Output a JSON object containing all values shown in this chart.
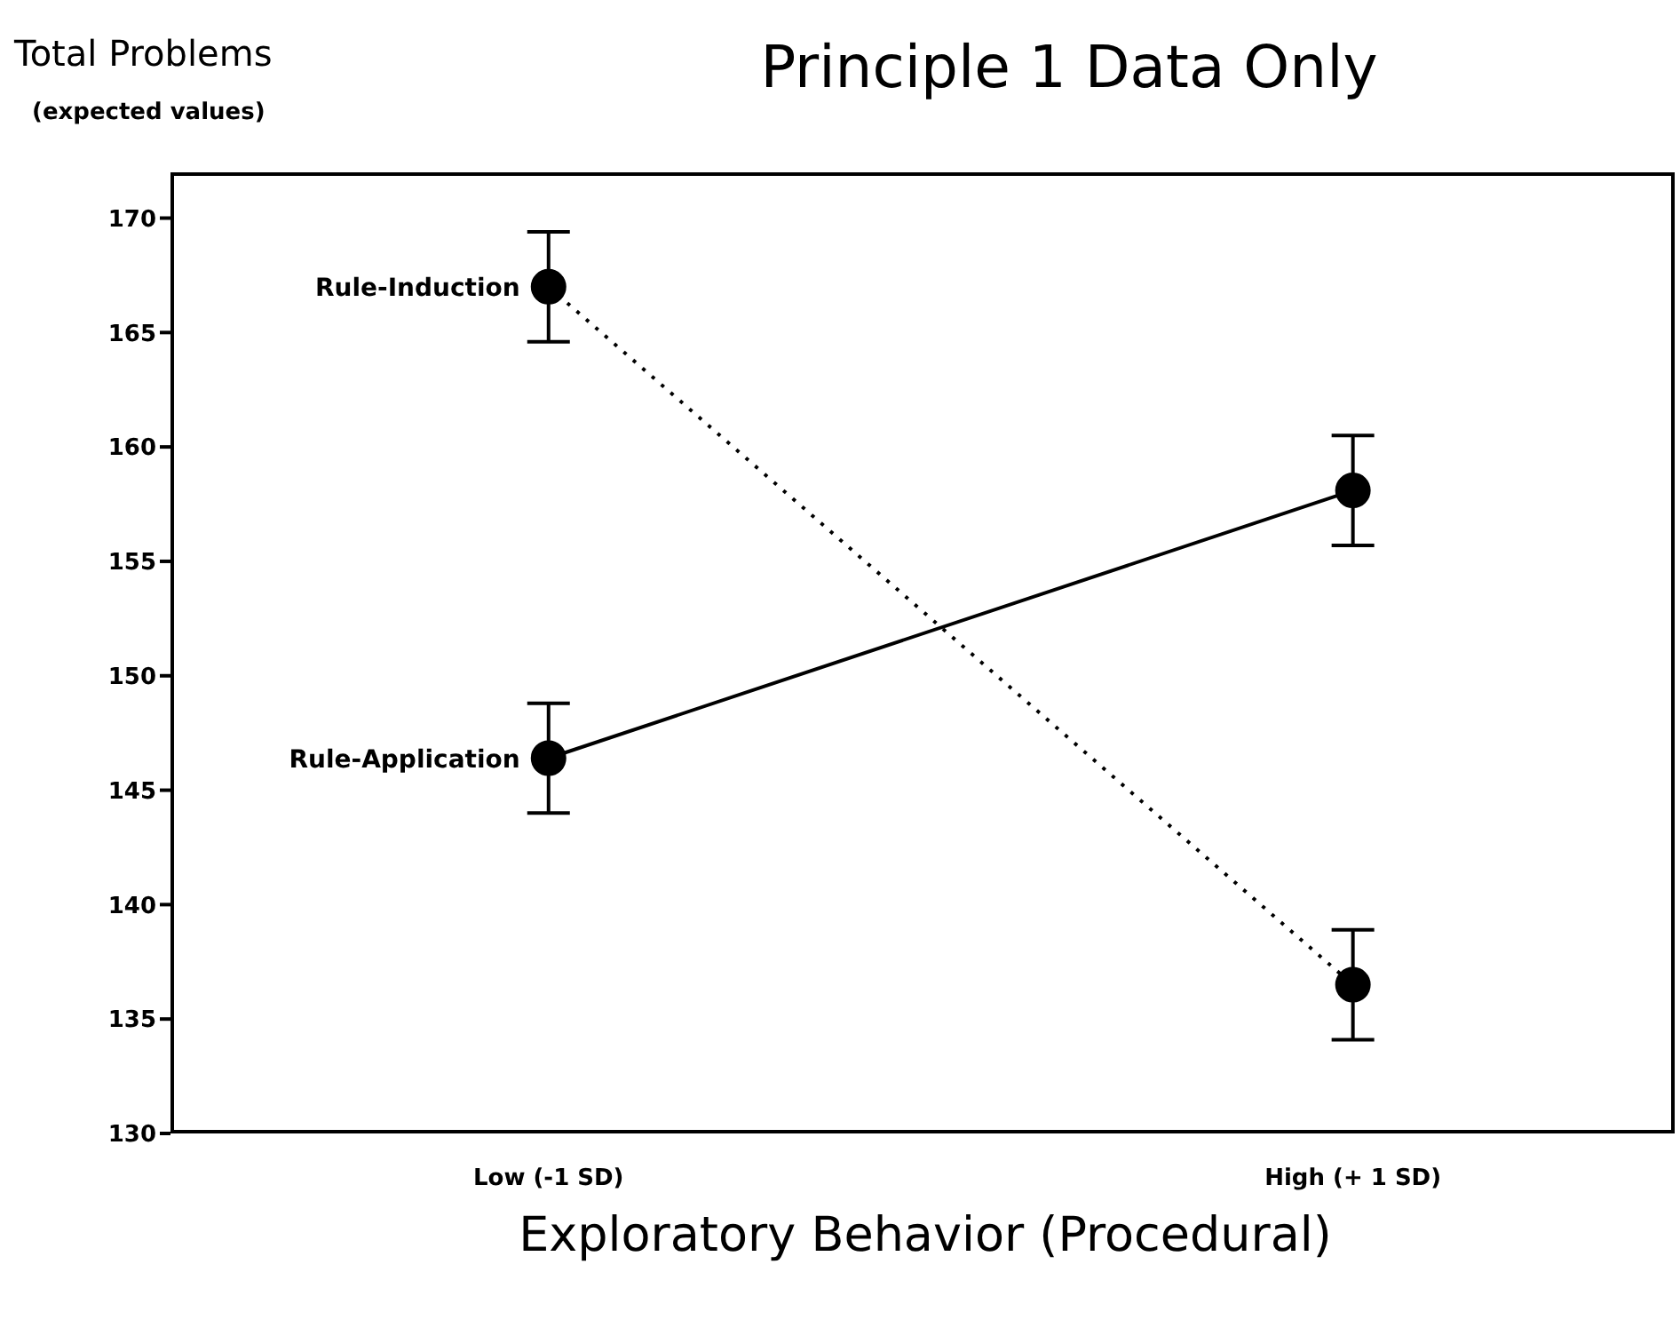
{
  "chart_data": {
    "type": "line",
    "title": "Principle 1 Data Only",
    "ylabel": "Total Problems",
    "xlabel": "Exploratory Behavior (Procedural)",
    "annotations": [
      "(expected values)"
    ],
    "categories": [
      "Low (-1 SD)",
      "High (+ 1 SD)"
    ],
    "series": [
      {
        "name": "Rule-Induction",
        "color": "#000000",
        "values": [
          167.0,
          136.5
        ],
        "errors": [
          2.4,
          2.4
        ],
        "line_style": "dotted",
        "marker": "circle"
      },
      {
        "name": "Rule-Application",
        "color": "#000000",
        "values": [
          146.4,
          158.1
        ],
        "errors": [
          2.4,
          2.4
        ],
        "line_style": "solid",
        "marker": "circle"
      }
    ],
    "ylim": [
      130,
      172
    ],
    "yticks": [
      130,
      135,
      140,
      145,
      150,
      155,
      160,
      165,
      170
    ],
    "grid": false,
    "legend": false
  }
}
